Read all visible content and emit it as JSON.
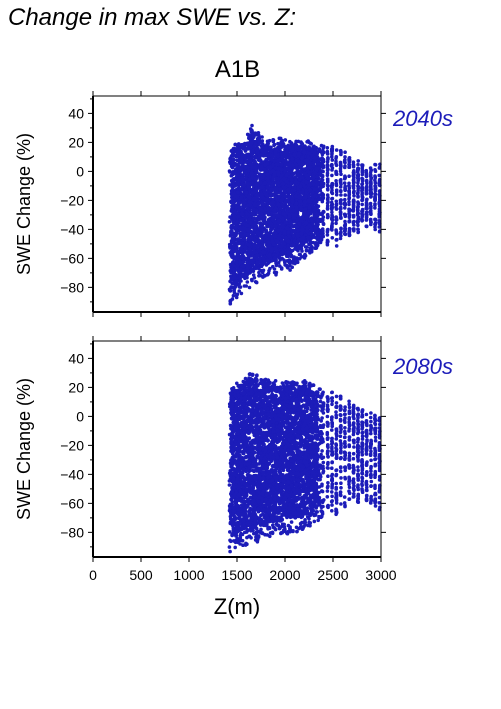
{
  "title": "Change in max SWE vs. Z:",
  "scenario": "A1B",
  "colors": {
    "points": "#1c1cb9",
    "axis": "#000000",
    "period_label": "#1c1cb9"
  },
  "chart_data": [
    {
      "type": "scatter",
      "period": "2040s",
      "xlabel": "Z(m)",
      "ylabel": "SWE Change (%)",
      "xlim": [
        0,
        3000
      ],
      "ylim": [
        -97,
        52
      ],
      "xticks": [
        0,
        500,
        1000,
        1500,
        2000,
        2500,
        3000
      ],
      "yticks": [
        40,
        20,
        0,
        -20,
        -40,
        -60,
        -80
      ],
      "grid": false,
      "envelope": [
        [
          1420,
          -92,
          14
        ],
        [
          1450,
          -90,
          18
        ],
        [
          1500,
          -87,
          20
        ],
        [
          1550,
          -84,
          22
        ],
        [
          1600,
          -82,
          24
        ],
        [
          1650,
          -80,
          33
        ],
        [
          1700,
          -78,
          30
        ],
        [
          1750,
          -75,
          25
        ],
        [
          1800,
          -73,
          24
        ],
        [
          1850,
          -70,
          21
        ],
        [
          1900,
          -72,
          23
        ],
        [
          1950,
          -68,
          23
        ],
        [
          2000,
          -66,
          22
        ],
        [
          2050,
          -70,
          21
        ],
        [
          2100,
          -65,
          22
        ],
        [
          2150,
          -62,
          21
        ],
        [
          2200,
          -60,
          22
        ],
        [
          2250,
          -57,
          21
        ],
        [
          2300,
          -55,
          19
        ],
        [
          2350,
          -52,
          18
        ],
        [
          2400,
          -48,
          18
        ],
        [
          2450,
          -52,
          17
        ],
        [
          2500,
          -45,
          18
        ],
        [
          2550,
          -55,
          15
        ],
        [
          2600,
          -42,
          15
        ],
        [
          2650,
          -48,
          12
        ],
        [
          2700,
          -40,
          10
        ],
        [
          2750,
          -45,
          8
        ],
        [
          2800,
          -35,
          5
        ],
        [
          2850,
          -38,
          3
        ],
        [
          3000,
          -42,
          7
        ]
      ]
    },
    {
      "type": "scatter",
      "period": "2080s",
      "xlabel": "Z(m)",
      "ylabel": "SWE Change (%)",
      "xlim": [
        0,
        3000
      ],
      "ylim": [
        -97,
        52
      ],
      "xticks": [
        0,
        500,
        1000,
        1500,
        2000,
        2500,
        3000
      ],
      "yticks": [
        40,
        20,
        0,
        -20,
        -40,
        -60,
        -80
      ],
      "grid": false,
      "envelope": [
        [
          1420,
          -94,
          18
        ],
        [
          1450,
          -93,
          21
        ],
        [
          1500,
          -91,
          24
        ],
        [
          1550,
          -90,
          26
        ],
        [
          1600,
          -89,
          28
        ],
        [
          1650,
          -88,
          34
        ],
        [
          1700,
          -87,
          30
        ],
        [
          1750,
          -86,
          28
        ],
        [
          1800,
          -85,
          26
        ],
        [
          1850,
          -84,
          25
        ],
        [
          1900,
          -83,
          25
        ],
        [
          1950,
          -82,
          24
        ],
        [
          2000,
          -82,
          24
        ],
        [
          2050,
          -81,
          25
        ],
        [
          2100,
          -80,
          24
        ],
        [
          2150,
          -79,
          24
        ],
        [
          2200,
          -78,
          25
        ],
        [
          2250,
          -76,
          24
        ],
        [
          2300,
          -74,
          22
        ],
        [
          2350,
          -72,
          20
        ],
        [
          2400,
          -70,
          18
        ],
        [
          2450,
          -68,
          18
        ],
        [
          2500,
          -66,
          17
        ],
        [
          2550,
          -70,
          15
        ],
        [
          2600,
          -60,
          14
        ],
        [
          2650,
          -65,
          12
        ],
        [
          2700,
          -56,
          10
        ],
        [
          2750,
          -62,
          8
        ],
        [
          2800,
          -52,
          6
        ],
        [
          2850,
          -60,
          4
        ],
        [
          3000,
          -65,
          0
        ]
      ]
    }
  ]
}
